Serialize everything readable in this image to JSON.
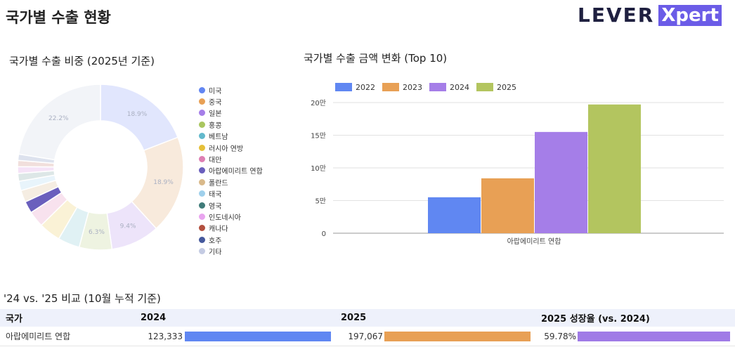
{
  "header": {
    "title": "국가별 수출 현황",
    "logo_left": "LEVER",
    "logo_right": "Xpert"
  },
  "donut_title": "국가별 수출 비중 (2025년 기준)",
  "bar_title": "국가별 수출 금액 변화 (Top 10)",
  "comparison": {
    "title": "'24 vs. '25 비교 (10월 누적 기준)",
    "headers": [
      "국가",
      "2024",
      "2025",
      "2025 성장율 (vs. 2024)"
    ],
    "rows": [
      {
        "country": "아랍에미리트 연합",
        "v2024": "123,333",
        "v2025": "197,067",
        "growth": "59.78%"
      }
    ],
    "colors": {
      "c2024": "#6087f2",
      "c2025": "#e8a055",
      "growth": "#a07be6"
    }
  },
  "chart_data": [
    {
      "type": "pie",
      "title": "국가별 수출 비중 (2025년 기준)",
      "donut": true,
      "legend_position": "right",
      "slices": [
        {
          "label": "미국",
          "value": 18.9,
          "shown_label": "18.9%",
          "color": "#e1e6fd",
          "legend_color": "#6286f2"
        },
        {
          "label": "중국",
          "value": 18.9,
          "shown_label": "18.9%",
          "color": "#f8eadc",
          "legend_color": "#e8a055"
        },
        {
          "label": "일본",
          "value": 9.4,
          "shown_label": "9.4%",
          "color": "#ede4fa",
          "legend_color": "#a57ee8"
        },
        {
          "label": "홍콩",
          "value": 6.3,
          "shown_label": "6.3%",
          "color": "#eef3e1",
          "legend_color": "#a9c65f"
        },
        {
          "label": "베트남",
          "value": 4.2,
          "shown_label": "",
          "color": "#e0f1f4",
          "legend_color": "#62b9cc"
        },
        {
          "label": "러시아 연방",
          "value": 4.2,
          "shown_label": "",
          "color": "#faf2d6",
          "legend_color": "#e5c03a"
        },
        {
          "label": "대만",
          "value": 3.1,
          "shown_label": "",
          "color": "#f8e2ee",
          "legend_color": "#de7fb3"
        },
        {
          "label": "아랍에미리트 연합",
          "value": 2.3,
          "shown_label": "",
          "color": "#6a5fbd",
          "legend_color": "#6a5fbd"
        },
        {
          "label": "폴란드",
          "value": 2.3,
          "shown_label": "",
          "color": "#f5ede2",
          "legend_color": "#d9b98a"
        },
        {
          "label": "태국",
          "value": 1.8,
          "shown_label": "",
          "color": "#e8f4fb",
          "legend_color": "#9fd0ec"
        },
        {
          "label": "영국",
          "value": 1.5,
          "shown_label": "",
          "color": "#dde7e7",
          "legend_color": "#3f7b79"
        },
        {
          "label": "인도네시아",
          "value": 1.3,
          "shown_label": "",
          "color": "#f5e3f7",
          "legend_color": "#e9a4ef"
        },
        {
          "label": "캐나다",
          "value": 1.2,
          "shown_label": "",
          "color": "#f1dfdc",
          "legend_color": "#b3503f"
        },
        {
          "label": "호주",
          "value": 1.2,
          "shown_label": "",
          "color": "#dde2ee",
          "legend_color": "#45589c"
        },
        {
          "label": "기타",
          "value": 22.2,
          "shown_label": "22.2%",
          "color": "#f2f4f8",
          "legend_color": "#c4cbe3"
        }
      ]
    },
    {
      "type": "bar",
      "title": "국가별 수출 금액 변화 (Top 10)",
      "categories": [
        "아랍에미리트 연합"
      ],
      "series": [
        {
          "name": "2022",
          "values": [
            55000
          ],
          "color": "#6087f2"
        },
        {
          "name": "2023",
          "values": [
            84000
          ],
          "color": "#e8a055"
        },
        {
          "name": "2024",
          "values": [
            155000
          ],
          "color": "#a57ee8"
        },
        {
          "name": "2025",
          "values": [
            197067
          ],
          "color": "#b3c55f"
        }
      ],
      "ylim": [
        0,
        200000
      ],
      "yticks": [
        0,
        50000,
        100000,
        150000,
        200000
      ],
      "ytick_labels": [
        "0",
        "5만",
        "10만",
        "15만",
        "20만"
      ],
      "legend_position": "top-left",
      "grid": true
    }
  ]
}
